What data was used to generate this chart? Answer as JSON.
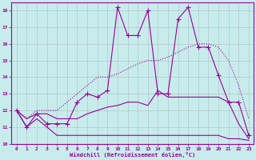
{
  "xlabel": "Windchill (Refroidissement éolien,°C)",
  "background_color": "#c8ecec",
  "grid_color": "#b0c8c8",
  "line_color": "#990099",
  "xlim": [
    -0.5,
    23.5
  ],
  "ylim": [
    10,
    18.5
  ],
  "xticks": [
    0,
    1,
    2,
    3,
    4,
    5,
    6,
    7,
    8,
    9,
    10,
    11,
    12,
    13,
    14,
    15,
    16,
    17,
    18,
    19,
    20,
    21,
    22,
    23
  ],
  "yticks": [
    10,
    11,
    12,
    13,
    14,
    15,
    16,
    17,
    18
  ],
  "line_dotted_x": [
    0,
    1,
    2,
    3,
    4,
    5,
    6,
    7,
    8,
    9,
    10,
    11,
    12,
    13,
    14,
    15,
    16,
    17,
    18,
    19,
    20,
    21,
    22,
    23
  ],
  "line_dotted_y": [
    12.0,
    11.5,
    12.0,
    12.0,
    12.0,
    12.5,
    13.0,
    13.5,
    14.0,
    14.0,
    14.2,
    14.5,
    14.8,
    15.0,
    15.0,
    15.2,
    15.5,
    15.8,
    16.0,
    16.0,
    15.8,
    15.0,
    13.5,
    11.5
  ],
  "line_lower_x": [
    0,
    1,
    2,
    3,
    4,
    5,
    6,
    7,
    8,
    9,
    10,
    11,
    12,
    13,
    14,
    15,
    16,
    17,
    18,
    19,
    20,
    21,
    22,
    23
  ],
  "line_lower_y": [
    12.0,
    11.0,
    11.5,
    11.0,
    10.5,
    10.5,
    10.5,
    10.5,
    10.5,
    10.5,
    10.5,
    10.5,
    10.5,
    10.5,
    10.5,
    10.5,
    10.5,
    10.5,
    10.5,
    10.5,
    10.5,
    10.3,
    10.3,
    10.2
  ],
  "line_mid_x": [
    0,
    1,
    2,
    3,
    4,
    5,
    6,
    7,
    8,
    9,
    10,
    11,
    12,
    13,
    14,
    15,
    16,
    17,
    18,
    19,
    20,
    21,
    22,
    23
  ],
  "line_mid_y": [
    12.0,
    11.5,
    11.8,
    11.8,
    11.5,
    11.5,
    11.5,
    11.8,
    12.0,
    12.2,
    12.3,
    12.5,
    12.5,
    12.3,
    13.2,
    12.8,
    12.8,
    12.8,
    12.8,
    12.8,
    12.8,
    12.5,
    11.2,
    10.3
  ],
  "line_zigzag_x": [
    0,
    1,
    2,
    3,
    4,
    5,
    6,
    7,
    8,
    9,
    10,
    11,
    12,
    13,
    14,
    15,
    16,
    17,
    18,
    19,
    20,
    21,
    22,
    23
  ],
  "line_zigzag_y": [
    12.0,
    11.0,
    11.8,
    11.2,
    11.2,
    11.2,
    12.5,
    13.0,
    12.8,
    13.2,
    18.2,
    16.5,
    16.5,
    18.0,
    13.0,
    13.0,
    17.5,
    18.2,
    15.8,
    15.8,
    14.1,
    12.5,
    12.5,
    10.5
  ]
}
